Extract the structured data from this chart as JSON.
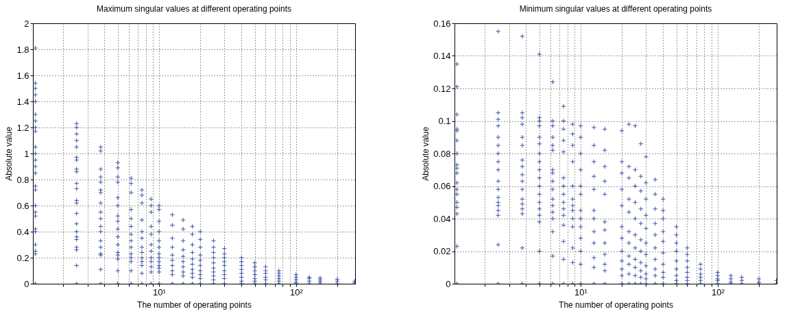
{
  "chart_data": [
    {
      "type": "scatter",
      "title": "Maximum singular values at different operating points",
      "xlabel": "The number of operating points",
      "ylabel": "Absolute value",
      "log": "x",
      "grid": true,
      "marker": "cross",
      "xlim": [
        1.2,
        270
      ],
      "ylim": [
        0,
        2
      ],
      "xticks": [
        {
          "value": 2,
          "label": null
        },
        {
          "value": 3,
          "label": null
        },
        {
          "value": 4,
          "label": null
        },
        {
          "value": 5,
          "label": null
        },
        {
          "value": 6,
          "label": null
        },
        {
          "value": 7,
          "label": null
        },
        {
          "value": 8,
          "label": null
        },
        {
          "value": 9,
          "label": null
        },
        {
          "value": 10,
          "label": "10¹"
        },
        {
          "value": 20,
          "label": null
        },
        {
          "value": 30,
          "label": null
        },
        {
          "value": 40,
          "label": null
        },
        {
          "value": 50,
          "label": null
        },
        {
          "value": 60,
          "label": null
        },
        {
          "value": 70,
          "label": null
        },
        {
          "value": 80,
          "label": null
        },
        {
          "value": 90,
          "label": null
        },
        {
          "value": 100,
          "label": "10²"
        },
        {
          "value": 200,
          "label": null
        }
      ],
      "yticks": [
        0,
        0.2,
        0.4,
        0.6,
        0.8,
        1,
        1.2,
        1.4,
        1.6,
        1.8,
        2
      ],
      "series": [
        {
          "color": "#3a53a4",
          "x": [
            1.25,
            1.25,
            1.25,
            1.25,
            1.25,
            1.25,
            1.25,
            1.25,
            1.25,
            1.25,
            1.25,
            1.25,
            1.25,
            1.25,
            1.25,
            1.25,
            1.25,
            1.25,
            1.25,
            1.25,
            1.25,
            1.25,
            1.25,
            1.25,
            1.25,
            2.5,
            2.5,
            2.5,
            2.5,
            2.5,
            2.5,
            2.5,
            2.5,
            2.5,
            2.5,
            2.5,
            2.5,
            2.5,
            2.5,
            2.5,
            2.5,
            2.5,
            2.5,
            2.5,
            2.5,
            2.5,
            2.5,
            3.75,
            3.75,
            3.75,
            3.75,
            3.75,
            3.75,
            3.75,
            3.75,
            3.75,
            3.75,
            3.75,
            3.75,
            3.75,
            3.75,
            3.75,
            3.75,
            3.75,
            3.75,
            5,
            5,
            5,
            5,
            5,
            5,
            5,
            5,
            5,
            5,
            5,
            5,
            5,
            5,
            5,
            5,
            6.25,
            6.25,
            6.25,
            6.25,
            6.25,
            6.25,
            6.25,
            6.25,
            6.25,
            6.25,
            6.25,
            6.25,
            6.25,
            6.25,
            7.5,
            7.5,
            7.5,
            7.5,
            7.5,
            7.5,
            7.5,
            7.5,
            7.5,
            7.5,
            7.5,
            7.5,
            7.5,
            8.75,
            8.75,
            8.75,
            8.75,
            8.75,
            8.75,
            8.75,
            8.75,
            8.75,
            8.75,
            8.75,
            8.75,
            10,
            10,
            10,
            10,
            10,
            10,
            10,
            10,
            10,
            10,
            10,
            10,
            10,
            12.5,
            12.5,
            12.5,
            12.5,
            12.5,
            12.5,
            12.5,
            12.5,
            12.5,
            12.5,
            15,
            15,
            15,
            15,
            15,
            15,
            15,
            15,
            15,
            15,
            17.5,
            17.5,
            17.5,
            17.5,
            17.5,
            17.5,
            17.5,
            17.5,
            17.5,
            17.5,
            20,
            20,
            20,
            20,
            20,
            20,
            20,
            20,
            20,
            20,
            25,
            25,
            25,
            25,
            25,
            25,
            25,
            25,
            25,
            25,
            30,
            30,
            30,
            30,
            30,
            30,
            30,
            30,
            30,
            40,
            40,
            40,
            40,
            40,
            40,
            40,
            40,
            50,
            50,
            50,
            50,
            50,
            50,
            50,
            60,
            60,
            60,
            60,
            60,
            60,
            75,
            75,
            75,
            75,
            75,
            75,
            100,
            100,
            100,
            100,
            100,
            125,
            125,
            125,
            125,
            150,
            150,
            150,
            150,
            200,
            200,
            200,
            268.75,
            268.75,
            268.75
          ],
          "values": [
            1.81,
            1.54,
            1.5,
            1.45,
            1.4,
            1.3,
            1.25,
            1.2,
            1.17,
            1.05,
            1.0,
            0.95,
            0.9,
            0.85,
            0.75,
            0.72,
            0.6,
            0.55,
            0.52,
            0.42,
            0.4,
            0.3,
            0.25,
            0.23,
            0,
            1.23,
            1.2,
            1.15,
            1.1,
            1.05,
            0.97,
            0.95,
            0.88,
            0.86,
            0.77,
            0.73,
            0.64,
            0.62,
            0.54,
            0.46,
            0.4,
            0.36,
            0.34,
            0.28,
            0.26,
            0.14,
            0,
            1.05,
            1.02,
            0.88,
            0.82,
            0.78,
            0.72,
            0.7,
            0.62,
            0.55,
            0.5,
            0.44,
            0.4,
            0.33,
            0.28,
            0.23,
            0.22,
            0.11,
            0,
            0.93,
            0.89,
            0.82,
            0.78,
            0.66,
            0.6,
            0.52,
            0.48,
            0.42,
            0.36,
            0.3,
            0.24,
            0.22,
            0.19,
            0.1,
            0,
            0.81,
            0.77,
            0.7,
            0.57,
            0.5,
            0.44,
            0.38,
            0.33,
            0.28,
            0.23,
            0.2,
            0.17,
            0.1,
            0,
            0.72,
            0.68,
            0.62,
            0.49,
            0.4,
            0.35,
            0.28,
            0.24,
            0.2,
            0.17,
            0.14,
            0.08,
            0,
            0.65,
            0.6,
            0.55,
            0.44,
            0.38,
            0.3,
            0.25,
            0.2,
            0.17,
            0.13,
            0.09,
            0,
            0.6,
            0.57,
            0.48,
            0.4,
            0.33,
            0.28,
            0.23,
            0.2,
            0.17,
            0.14,
            0.12,
            0.09,
            0,
            0.53,
            0.45,
            0.35,
            0.28,
            0.22,
            0.18,
            0.14,
            0.1,
            0.07,
            0,
            0.49,
            0.42,
            0.33,
            0.26,
            0.21,
            0.17,
            0.13,
            0.09,
            0.06,
            0,
            0.44,
            0.38,
            0.3,
            0.24,
            0.19,
            0.15,
            0.11,
            0.08,
            0.05,
            0,
            0.4,
            0.34,
            0.28,
            0.22,
            0.18,
            0.14,
            0.1,
            0.07,
            0.04,
            0,
            0.33,
            0.28,
            0.24,
            0.2,
            0.16,
            0.12,
            0.09,
            0.06,
            0.03,
            0,
            0.27,
            0.23,
            0.2,
            0.17,
            0.14,
            0.1,
            0.07,
            0.04,
            0,
            0.2,
            0.17,
            0.14,
            0.11,
            0.08,
            0.05,
            0.02,
            0,
            0.16,
            0.13,
            0.1,
            0.07,
            0.04,
            0.02,
            0,
            0.13,
            0.1,
            0.08,
            0.05,
            0.03,
            0,
            0.1,
            0.08,
            0.06,
            0.04,
            0.02,
            0,
            0.07,
            0.05,
            0.03,
            0.01,
            0,
            0.05,
            0.04,
            0.02,
            0,
            0.045,
            0.03,
            0.015,
            0,
            0.035,
            0.02,
            0,
            0.02,
            0.01,
            0
          ]
        }
      ]
    },
    {
      "type": "scatter",
      "title": "Minimum singular values at different operating points",
      "xlabel": "The number of operating points",
      "ylabel": "Absolute value",
      "log": "x",
      "grid": true,
      "marker": "cross",
      "xlim": [
        1.2,
        270
      ],
      "ylim": [
        0,
        0.16
      ],
      "xticks": [
        {
          "value": 2,
          "label": null
        },
        {
          "value": 3,
          "label": null
        },
        {
          "value": 4,
          "label": null
        },
        {
          "value": 5,
          "label": null
        },
        {
          "value": 6,
          "label": null
        },
        {
          "value": 7,
          "label": null
        },
        {
          "value": 8,
          "label": null
        },
        {
          "value": 9,
          "label": null
        },
        {
          "value": 10,
          "label": "10¹"
        },
        {
          "value": 20,
          "label": null
        },
        {
          "value": 30,
          "label": null
        },
        {
          "value": 40,
          "label": null
        },
        {
          "value": 50,
          "label": null
        },
        {
          "value": 60,
          "label": null
        },
        {
          "value": 70,
          "label": null
        },
        {
          "value": 80,
          "label": null
        },
        {
          "value": 90,
          "label": null
        },
        {
          "value": 100,
          "label": "10²"
        },
        {
          "value": 200,
          "label": null
        }
      ],
      "yticks": [
        0,
        0.02,
        0.04,
        0.06,
        0.08,
        0.1,
        0.12,
        0.14,
        0.16
      ],
      "series": [
        {
          "color": "#3a53a4",
          "x": [
            1.25,
            1.25,
            1.25,
            1.25,
            1.25,
            1.25,
            1.25,
            1.25,
            1.25,
            1.25,
            1.25,
            1.25,
            1.25,
            1.25,
            1.25,
            1.25,
            1.25,
            1.25,
            2.5,
            2.5,
            2.5,
            2.5,
            2.5,
            2.5,
            2.5,
            2.5,
            2.5,
            2.5,
            2.5,
            2.5,
            2.5,
            2.5,
            2.5,
            2.5,
            2.5,
            2.5,
            3.75,
            3.75,
            3.75,
            3.75,
            3.75,
            3.75,
            3.75,
            3.75,
            3.75,
            3.75,
            3.75,
            3.75,
            3.75,
            3.75,
            3.75,
            3.75,
            3.75,
            5,
            5,
            5,
            5,
            5,
            5,
            5,
            5,
            5,
            5,
            5,
            5,
            5,
            5,
            5,
            5,
            5,
            5,
            6.25,
            6.25,
            6.25,
            6.25,
            6.25,
            6.25,
            6.25,
            6.25,
            6.25,
            6.25,
            6.25,
            6.25,
            6.25,
            6.25,
            6.25,
            6.25,
            6.25,
            7.5,
            7.5,
            7.5,
            7.5,
            7.5,
            7.5,
            7.5,
            7.5,
            7.5,
            7.5,
            7.5,
            7.5,
            7.5,
            7.5,
            7.5,
            8.75,
            8.75,
            8.75,
            8.75,
            8.75,
            8.75,
            8.75,
            8.75,
            8.75,
            8.75,
            8.75,
            8.75,
            8.75,
            10,
            10,
            10,
            10,
            10,
            10,
            10,
            10,
            10,
            10,
            10,
            10,
            10,
            12.5,
            12.5,
            12.5,
            12.5,
            12.5,
            12.5,
            12.5,
            12.5,
            12.5,
            12.5,
            12.5,
            12.5,
            15,
            15,
            15,
            15,
            15,
            15,
            15,
            15,
            15,
            15,
            15,
            15,
            20,
            20,
            20,
            20,
            20,
            20,
            20,
            20,
            20,
            20,
            20,
            20,
            22.5,
            22.5,
            22.5,
            22.5,
            22.5,
            22.5,
            22.5,
            22.5,
            22.5,
            22.5,
            22.5,
            25,
            25,
            25,
            25,
            25,
            25,
            25,
            25,
            25,
            25,
            25,
            27.5,
            27.5,
            27.5,
            27.5,
            27.5,
            27.5,
            27.5,
            27.5,
            27.5,
            27.5,
            27.5,
            30,
            30,
            30,
            30,
            30,
            30,
            30,
            30,
            30,
            30,
            30,
            35,
            35,
            35,
            35,
            35,
            35,
            35,
            35,
            35,
            35,
            40,
            40,
            40,
            40,
            40,
            40,
            40,
            40,
            40,
            40,
            50,
            50,
            50,
            50,
            50,
            50,
            50,
            50,
            50,
            60,
            60,
            60,
            60,
            60,
            60,
            60,
            60,
            75,
            75,
            75,
            75,
            75,
            75,
            100,
            100,
            100,
            100,
            100,
            125,
            125,
            125,
            125,
            150,
            150,
            150,
            200,
            200,
            200,
            268.75,
            268.75
          ],
          "values": [
            0.135,
            0.121,
            0.104,
            0.095,
            0.094,
            0.088,
            0.08,
            0.073,
            0.071,
            0.068,
            0.062,
            0.058,
            0.055,
            0.05,
            0.047,
            0.043,
            0.023,
            0,
            0.155,
            0.105,
            0.101,
            0.097,
            0.09,
            0.085,
            0.08,
            0.075,
            0.07,
            0.063,
            0.058,
            0.053,
            0.05,
            0.048,
            0.045,
            0.042,
            0.024,
            0,
            0.152,
            0.105,
            0.102,
            0.098,
            0.09,
            0.085,
            0.076,
            0.072,
            0.067,
            0.063,
            0.058,
            0.052,
            0.049,
            0.046,
            0.043,
            0.022,
            0,
            0.141,
            0.102,
            0.1,
            0.097,
            0.09,
            0.086,
            0.08,
            0.075,
            0.07,
            0.065,
            0.06,
            0.055,
            0.05,
            0.046,
            0.042,
            0.038,
            0.02,
            0,
            0.124,
            0.1,
            0.097,
            0.09,
            0.085,
            0.082,
            0.07,
            0.068,
            0.063,
            0.058,
            0.052,
            0.048,
            0.044,
            0.04,
            0.032,
            0.017,
            0,
            0.109,
            0.1,
            0.095,
            0.088,
            0.081,
            0.065,
            0.06,
            0.055,
            0.05,
            0.046,
            0.042,
            0.036,
            0.026,
            0.015,
            0,
            0.098,
            0.092,
            0.085,
            0.075,
            0.06,
            0.052,
            0.048,
            0.045,
            0.04,
            0.035,
            0.022,
            0.013,
            0,
            0.097,
            0.09,
            0.08,
            0.07,
            0.06,
            0.055,
            0.045,
            0.04,
            0.035,
            0.028,
            0.02,
            0.012,
            0,
            0.096,
            0.085,
            0.075,
            0.066,
            0.058,
            0.045,
            0.04,
            0.032,
            0.025,
            0.016,
            0.01,
            0,
            0.095,
            0.082,
            0.072,
            0.063,
            0.055,
            0.038,
            0.033,
            0.025,
            0.018,
            0.012,
            0.008,
            0,
            0.094,
            0.075,
            0.068,
            0.058,
            0.048,
            0.035,
            0.028,
            0.02,
            0.014,
            0.009,
            0.005,
            0,
            0.098,
            0.072,
            0.065,
            0.052,
            0.044,
            0.032,
            0.025,
            0.017,
            0.012,
            0.006,
            0,
            0.097,
            0.07,
            0.06,
            0.05,
            0.04,
            0.03,
            0.022,
            0.015,
            0.01,
            0.005,
            0,
            0.086,
            0.066,
            0.057,
            0.046,
            0.037,
            0.027,
            0.02,
            0.013,
            0.008,
            0.004,
            0,
            0.078,
            0.062,
            0.052,
            0.042,
            0.034,
            0.025,
            0.018,
            0.011,
            0.006,
            0.003,
            0,
            0.064,
            0.055,
            0.046,
            0.037,
            0.03,
            0.022,
            0.015,
            0.009,
            0.005,
            0,
            0.052,
            0.045,
            0.04,
            0.032,
            0.026,
            0.019,
            0.012,
            0.007,
            0.004,
            0,
            0.035,
            0.03,
            0.025,
            0.02,
            0.014,
            0.009,
            0.005,
            0.002,
            0,
            0.022,
            0.018,
            0.014,
            0.01,
            0.007,
            0.004,
            0.002,
            0,
            0.012,
            0.009,
            0.006,
            0.004,
            0.002,
            0,
            0.007,
            0.005,
            0.003,
            0.002,
            0,
            0.005,
            0.003,
            0.001,
            0,
            0.004,
            0.002,
            0,
            0.003,
            0.001,
            0,
            0.002,
            0
          ]
        }
      ]
    }
  ]
}
